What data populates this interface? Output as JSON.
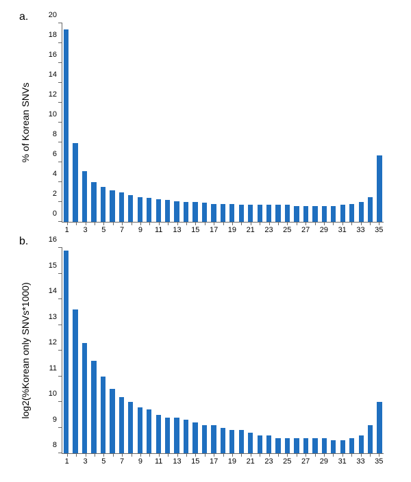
{
  "panel_a": {
    "label": "a.",
    "type": "bar",
    "ylabel": "% of Korean SNVs",
    "label_fontsize": 14,
    "tick_fontsize": 11,
    "ylim": [
      0,
      20
    ],
    "ytick_step": 2,
    "x_values": [
      1,
      2,
      3,
      4,
      5,
      6,
      7,
      8,
      9,
      10,
      11,
      12,
      13,
      14,
      15,
      16,
      17,
      18,
      19,
      20,
      21,
      22,
      23,
      24,
      25,
      26,
      27,
      28,
      29,
      30,
      31,
      32,
      33,
      34,
      35
    ],
    "x_tick_labels": [
      1,
      3,
      5,
      7,
      9,
      11,
      13,
      15,
      17,
      19,
      21,
      23,
      25,
      27,
      29,
      31,
      33,
      35
    ],
    "values": [
      19.4,
      7.9,
      5.1,
      4.0,
      3.5,
      3.2,
      3.0,
      2.7,
      2.5,
      2.4,
      2.3,
      2.2,
      2.1,
      2.0,
      2.0,
      1.9,
      1.8,
      1.8,
      1.8,
      1.7,
      1.7,
      1.7,
      1.7,
      1.7,
      1.7,
      1.6,
      1.6,
      1.6,
      1.6,
      1.6,
      1.7,
      1.8,
      2.0,
      2.5,
      6.7
    ],
    "bar_color": "#1f6fbf",
    "bar_width": 0.55,
    "background_color": "#ffffff",
    "axis_color": "#666666",
    "text_color": "#000000"
  },
  "panel_b": {
    "label": "b.",
    "type": "bar",
    "ylabel": "log2(%Korean only SNVs*1000)",
    "label_fontsize": 14,
    "tick_fontsize": 11,
    "ylim": [
      8,
      16
    ],
    "ytick_step": 1,
    "x_values": [
      1,
      2,
      3,
      4,
      5,
      6,
      7,
      8,
      9,
      10,
      11,
      12,
      13,
      14,
      15,
      16,
      17,
      18,
      19,
      20,
      21,
      22,
      23,
      24,
      25,
      26,
      27,
      28,
      29,
      30,
      31,
      32,
      33,
      34,
      35
    ],
    "x_tick_labels": [
      1,
      3,
      5,
      7,
      9,
      11,
      13,
      15,
      17,
      19,
      21,
      23,
      25,
      27,
      29,
      31,
      33,
      35
    ],
    "values": [
      15.9,
      13.6,
      12.3,
      11.6,
      11.0,
      10.5,
      10.2,
      10.0,
      9.8,
      9.7,
      9.5,
      9.4,
      9.4,
      9.3,
      9.2,
      9.1,
      9.1,
      9.0,
      8.9,
      8.9,
      8.8,
      8.7,
      8.7,
      8.6,
      8.6,
      8.6,
      8.6,
      8.6,
      8.6,
      8.5,
      8.5,
      8.6,
      8.7,
      9.1,
      10.0
    ],
    "bar_color": "#1f6fbf",
    "bar_width": 0.55,
    "background_color": "#ffffff",
    "axis_color": "#666666",
    "text_color": "#000000"
  }
}
